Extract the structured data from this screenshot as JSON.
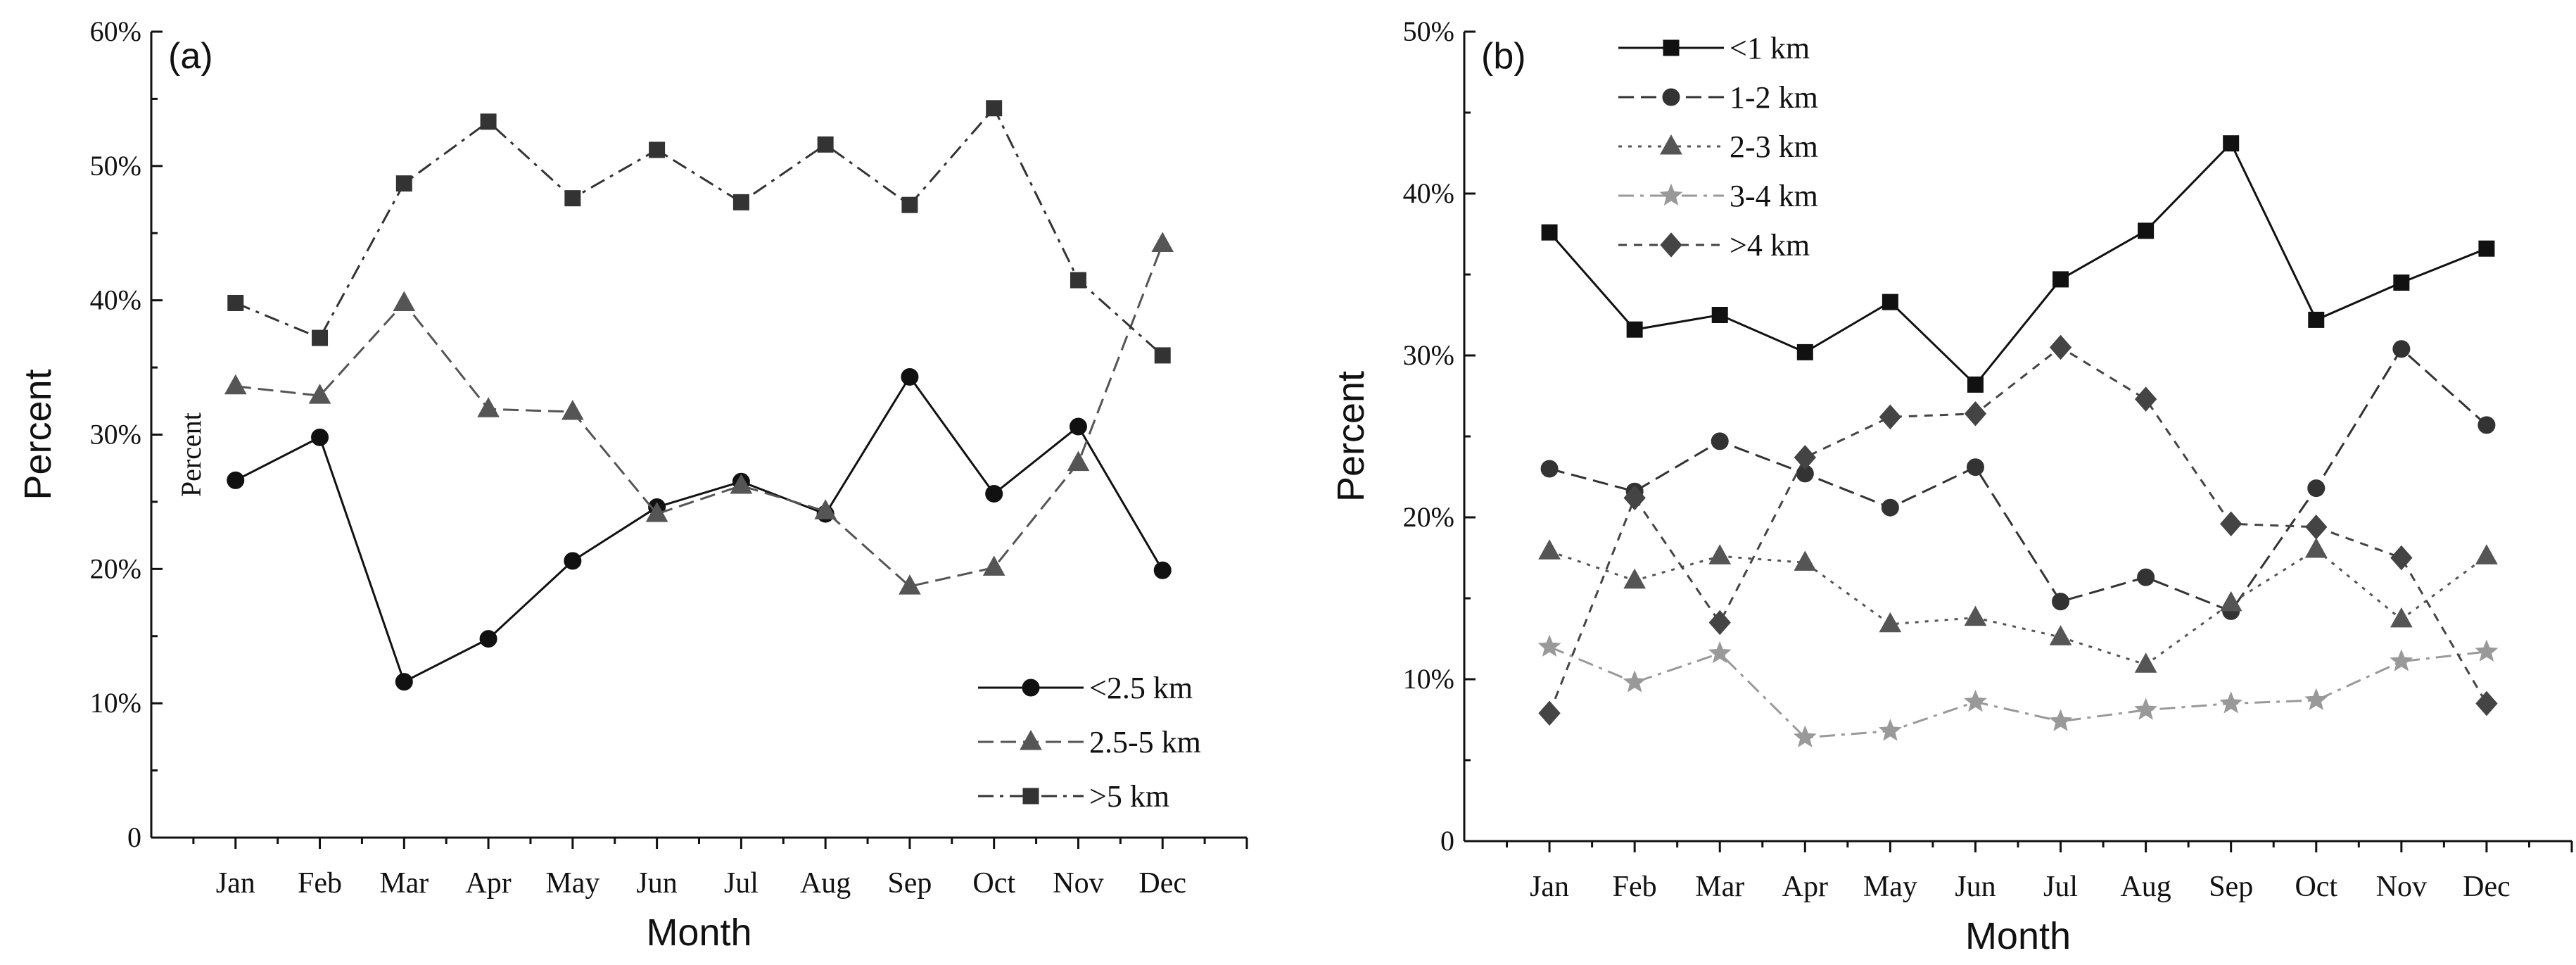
{
  "chart_data": [
    {
      "type": "line",
      "panel_label": "(a)",
      "xlabel": "Month",
      "ylabel": "Percent",
      "inner_label": "Percent",
      "categories": [
        "Jan",
        "Feb",
        "Mar",
        "Apr",
        "May",
        "Jun",
        "Jul",
        "Aug",
        "Sep",
        "Oct",
        "Nov",
        "Dec"
      ],
      "ylim": [
        0,
        60
      ],
      "yticks": [
        {
          "value": 0,
          "label": "0"
        },
        {
          "value": 10,
          "label": "10%"
        },
        {
          "value": 20,
          "label": "20%"
        },
        {
          "value": 30,
          "label": "30%"
        },
        {
          "value": 40,
          "label": "40%"
        },
        {
          "value": 50,
          "label": "50%"
        },
        {
          "value": 60,
          "label": "60%"
        }
      ],
      "legend_position": "bottom-right",
      "series": [
        {
          "name": "<2.5 km",
          "marker": "circle",
          "dash": "solid",
          "color": "#111111",
          "values": [
            26.6,
            29.8,
            11.6,
            14.8,
            20.6,
            24.6,
            26.5,
            24.1,
            34.3,
            25.6,
            30.6,
            19.9
          ]
        },
        {
          "name": "2.5-5 km",
          "marker": "triangle",
          "dash": "dashed",
          "color": "#555555",
          "values": [
            33.6,
            32.9,
            39.8,
            31.9,
            31.7,
            24.1,
            26.2,
            24.3,
            18.7,
            20.1,
            27.9,
            44.2
          ]
        },
        {
          "name": ">5 km",
          "marker": "square",
          "dash": "dashdot",
          "color": "#333333",
          "values": [
            39.8,
            37.2,
            48.7,
            53.3,
            47.6,
            51.2,
            47.3,
            51.6,
            47.1,
            54.3,
            41.5,
            35.9
          ]
        }
      ]
    },
    {
      "type": "line",
      "panel_label": "(b)",
      "xlabel": "Month",
      "ylabel": "Percent",
      "categories": [
        "Jan",
        "Feb",
        "Mar",
        "Apr",
        "May",
        "Jun",
        "Jul",
        "Aug",
        "Sep",
        "Oct",
        "Nov",
        "Dec"
      ],
      "ylim": [
        0,
        50
      ],
      "yticks": [
        {
          "value": 0,
          "label": "0"
        },
        {
          "value": 10,
          "label": "10%"
        },
        {
          "value": 20,
          "label": "20%"
        },
        {
          "value": 30,
          "label": "30%"
        },
        {
          "value": 40,
          "label": "40%"
        },
        {
          "value": 50,
          "label": "50%"
        }
      ],
      "legend_position": "top-left",
      "series": [
        {
          "name": "<1 km",
          "marker": "square",
          "dash": "solid",
          "color": "#111111",
          "values": [
            37.6,
            31.6,
            32.5,
            30.2,
            33.3,
            28.2,
            34.7,
            37.7,
            43.1,
            32.2,
            34.5,
            36.6
          ]
        },
        {
          "name": "1-2 km",
          "marker": "circle",
          "dash": "dashed",
          "color": "#333333",
          "values": [
            23.0,
            21.6,
            24.7,
            22.7,
            20.6,
            23.1,
            14.8,
            16.3,
            14.2,
            21.8,
            30.4,
            25.7
          ]
        },
        {
          "name": "2-3 km",
          "marker": "triangle",
          "dash": "dotted",
          "color": "#555555",
          "values": [
            17.9,
            16.1,
            17.6,
            17.2,
            13.4,
            13.8,
            12.6,
            10.9,
            14.7,
            18.0,
            13.7,
            17.6
          ]
        },
        {
          "name": "3-4 km",
          "marker": "star",
          "dash": "dashdot",
          "color": "#999999",
          "values": [
            12.0,
            9.8,
            11.6,
            6.4,
            6.8,
            8.6,
            7.4,
            8.1,
            8.5,
            8.7,
            11.1,
            11.7
          ]
        },
        {
          "name": ">4 km",
          "marker": "diamond",
          "dash": "shortdash",
          "color": "#444444",
          "values": [
            7.9,
            21.2,
            13.5,
            23.7,
            26.2,
            26.4,
            30.5,
            27.3,
            19.6,
            19.4,
            17.5,
            8.5
          ]
        }
      ]
    }
  ]
}
